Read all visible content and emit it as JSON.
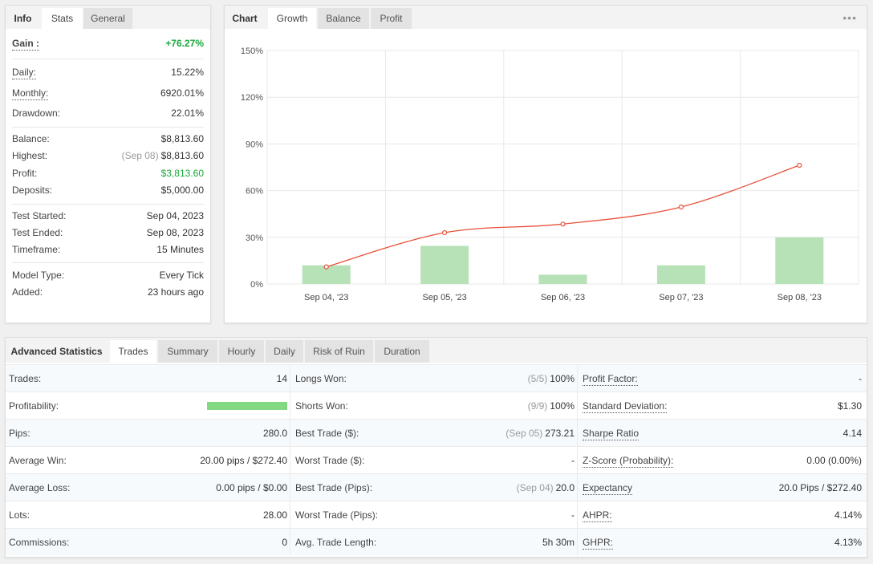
{
  "info_panel": {
    "tabs": [
      "Info",
      "Stats",
      "General"
    ],
    "gain": {
      "label": "Gain :",
      "value": "+76.27%"
    },
    "daily": {
      "label": "Daily:",
      "value": "15.22%"
    },
    "monthly": {
      "label": "Monthly:",
      "value": "6920.01%"
    },
    "drawdown": {
      "label": "Drawdown:",
      "value": "22.01%"
    },
    "balance": {
      "label": "Balance:",
      "value": "$8,813.60"
    },
    "highest": {
      "label": "Highest:",
      "note": "(Sep 08)",
      "value": "$8,813.60"
    },
    "profit": {
      "label": "Profit:",
      "value": "$3,813.60"
    },
    "deposits": {
      "label": "Deposits:",
      "value": "$5,000.00"
    },
    "test_started": {
      "label": "Test Started:",
      "value": "Sep 04, 2023"
    },
    "test_ended": {
      "label": "Test Ended:",
      "value": "Sep 08, 2023"
    },
    "timeframe": {
      "label": "Timeframe:",
      "value": "15 Minutes"
    },
    "model_type": {
      "label": "Model Type:",
      "value": "Every Tick"
    },
    "added": {
      "label": "Added:",
      "value": "23 hours ago"
    }
  },
  "chart_panel": {
    "tabs": [
      "Chart",
      "Growth",
      "Balance",
      "Profit"
    ],
    "more_icon": "ellipsis-icon"
  },
  "chart_data": {
    "type": "bar+line",
    "categories": [
      "Sep 04, '23",
      "Sep 05, '23",
      "Sep 06, '23",
      "Sep 07, '23",
      "Sep 08, '23"
    ],
    "bars": [
      12,
      24.5,
      6,
      12,
      30
    ],
    "line": [
      11,
      33,
      38.5,
      49.5,
      76.27
    ],
    "yticks": [
      "0%",
      "30%",
      "60%",
      "90%",
      "120%",
      "150%"
    ],
    "ylim": [
      0,
      150
    ],
    "bar_color": "#b7e1b7",
    "line_color": "#e8503a",
    "grid": true
  },
  "advanced": {
    "tabs": [
      "Advanced Statistics",
      "Trades",
      "Summary",
      "Hourly",
      "Daily",
      "Risk of Ruin",
      "Duration"
    ],
    "rows": [
      [
        {
          "l": "Trades:",
          "r": "14"
        },
        {
          "l": "Longs Won:",
          "note": "(5/5)",
          "r": "100%"
        },
        {
          "l": "Profit Factor:",
          "r": "-",
          "u": true
        }
      ],
      [
        {
          "l": "Profitability:",
          "bar": 100
        },
        {
          "l": "Shorts Won:",
          "note": "(9/9)",
          "r": "100%"
        },
        {
          "l": "Standard Deviation:",
          "r": "$1.30",
          "u": true
        }
      ],
      [
        {
          "l": "Pips:",
          "r": "280.0"
        },
        {
          "l": "Best Trade ($):",
          "note": "(Sep 05)",
          "r": "273.21"
        },
        {
          "l": "Sharpe Ratio",
          "r": "4.14",
          "u": true
        }
      ],
      [
        {
          "l": "Average Win:",
          "r": "20.00 pips / $272.40"
        },
        {
          "l": "Worst Trade ($):",
          "r": "-"
        },
        {
          "l": "Z-Score (Probability):",
          "r": "0.00 (0.00%)",
          "u": true
        }
      ],
      [
        {
          "l": "Average Loss:",
          "r": "0.00 pips / $0.00"
        },
        {
          "l": "Best Trade (Pips):",
          "note": "(Sep 04)",
          "r": "20.0"
        },
        {
          "l": "Expectancy",
          "r": "20.0 Pips / $272.40",
          "u": true
        }
      ],
      [
        {
          "l": "Lots:",
          "r": "28.00"
        },
        {
          "l": "Worst Trade (Pips):",
          "r": "-"
        },
        {
          "l": "AHPR:",
          "r": "4.14%",
          "u": true
        }
      ],
      [
        {
          "l": "Commissions:",
          "r": "0"
        },
        {
          "l": "Avg. Trade Length:",
          "r": "5h 30m"
        },
        {
          "l": "GHPR:",
          "r": "4.13%",
          "u": true
        }
      ]
    ]
  }
}
